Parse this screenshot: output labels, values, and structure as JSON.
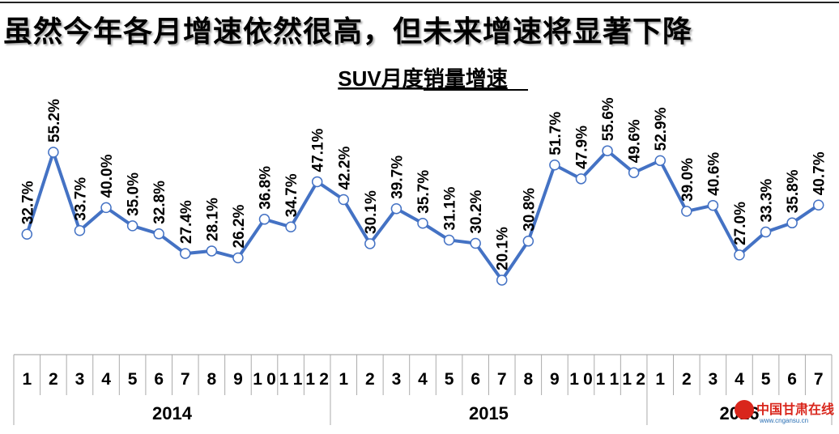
{
  "headline": "虽然今年各月增速依然很高，但未来增速将显著下降",
  "watermark": {
    "name": "中国甘肃在线",
    "url": "www.cngansu.cn"
  },
  "chart_data": {
    "type": "line",
    "title": "SUV月度销量增速",
    "categories": [
      "1",
      "2",
      "3",
      "4",
      "5",
      "6",
      "7",
      "8",
      "9",
      "10",
      "11",
      "12",
      "1",
      "2",
      "3",
      "4",
      "5",
      "6",
      "7",
      "8",
      "9",
      "10",
      "11",
      "12",
      "1",
      "2",
      "3",
      "4",
      "5",
      "6",
      "7"
    ],
    "years": [
      {
        "label": "2014",
        "months": 12
      },
      {
        "label": "2015",
        "months": 12
      },
      {
        "label": "2016",
        "months": 7
      }
    ],
    "series": [
      {
        "values": [
          32.7,
          55.2,
          33.7,
          40.0,
          35.0,
          32.8,
          27.4,
          28.1,
          26.2,
          36.8,
          34.7,
          47.1,
          42.2,
          30.1,
          39.7,
          35.7,
          31.1,
          30.2,
          20.1,
          30.8,
          51.7,
          47.9,
          55.6,
          49.6,
          52.9,
          39.0,
          40.6,
          27.0,
          33.3,
          35.8,
          40.7
        ],
        "labels": [
          "32.7%",
          "55.2%",
          "33.7%",
          "40.0%",
          "35.0%",
          "32.8%",
          "27.4%",
          "28.1%",
          "26.2%",
          "36.8%",
          "34.7%",
          "47.1%",
          "42.2%",
          "30.1%",
          "39.7%",
          "35.7%",
          "31.1%",
          "30.2%",
          "20.1%",
          "30.8%",
          "51.7%",
          "47.9%",
          "55.6%",
          "49.6%",
          "52.9%",
          "39.0%",
          "40.6%",
          "27.0%",
          "33.3%",
          "35.8%",
          "40.7%"
        ],
        "color": "#4472c4"
      }
    ],
    "unit": "%",
    "grid": false,
    "legend": "none"
  }
}
